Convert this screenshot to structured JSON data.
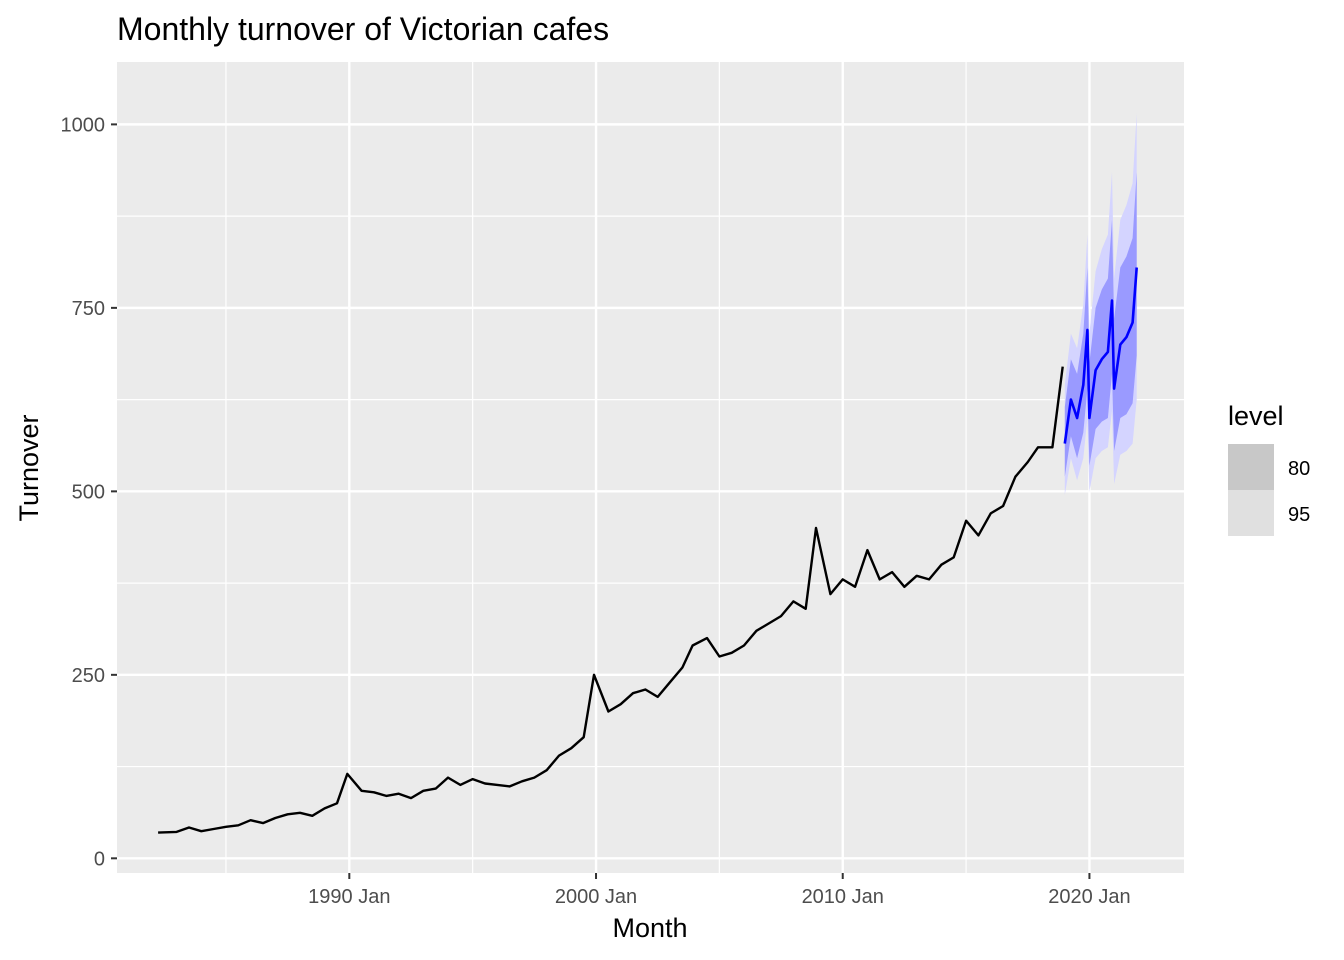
{
  "chart_data": {
    "type": "line",
    "title": "Monthly turnover of Victorian cafes",
    "xlabel": "Month",
    "ylabel": "Turnover",
    "x_ticks": [
      "1990 Jan",
      "2000 Jan",
      "2010 Jan",
      "2020 Jan"
    ],
    "y_ticks": [
      "0",
      "250",
      "500",
      "750",
      "1000"
    ],
    "ylim": [
      -20,
      1085
    ],
    "xlim": [
      "1980 Aug",
      "2023 Nov"
    ],
    "grid": true,
    "legend": {
      "title": "level",
      "placement": "right",
      "entries": [
        {
          "label": "80",
          "color": "#c8c8c8"
        },
        {
          "label": "95",
          "color": "#e0e0e0"
        }
      ]
    },
    "colors": {
      "panel": "#ebebeb",
      "grid": "#ffffff",
      "history": "#000000",
      "forecast": "#0000ff",
      "band80": "#9a9aff",
      "band95": "#d4d4ff"
    },
    "history": {
      "name": "",
      "x": [
        "1982 Apr",
        "1983 Jan",
        "1983 Jul",
        "1984 Jan",
        "1984 Jul",
        "1985 Jan",
        "1985 Jul",
        "1986 Jan",
        "1986 Jul",
        "1987 Jan",
        "1987 Jul",
        "1988 Jan",
        "1988 Jul",
        "1989 Jan",
        "1989 Jul",
        "1989 Dec",
        "1990 Jul",
        "1991 Jan",
        "1991 Jul",
        "1992 Jan",
        "1992 Jul",
        "1993 Jan",
        "1993 Jul",
        "1994 Jan",
        "1994 Jul",
        "1995 Jan",
        "1995 Jul",
        "1996 Jan",
        "1996 Jul",
        "1997 Jan",
        "1997 Jul",
        "1998 Jan",
        "1998 Jul",
        "1999 Jan",
        "1999 Jul",
        "1999 Dec",
        "2000 Jul",
        "2001 Jan",
        "2001 Jul",
        "2002 Jan",
        "2002 Jul",
        "2003 Jan",
        "2003 Jul",
        "2003 Dec",
        "2004 Jul",
        "2005 Jan",
        "2005 Jul",
        "2006 Jan",
        "2006 Jul",
        "2007 Jan",
        "2007 Jul",
        "2008 Jan",
        "2008 Jul",
        "2008 Dec",
        "2009 Jul",
        "2010 Jan",
        "2010 Jul",
        "2011 Jan",
        "2011 Jul",
        "2012 Jan",
        "2012 Jul",
        "2013 Jan",
        "2013 Jul",
        "2014 Jan",
        "2014 Jul",
        "2015 Jan",
        "2015 Jul",
        "2016 Jan",
        "2016 Jul",
        "2017 Jan",
        "2017 Jul",
        "2017 Dec",
        "2018 Jul",
        "2018 Dec"
      ],
      "values": [
        35,
        36,
        42,
        37,
        40,
        43,
        45,
        52,
        48,
        55,
        60,
        62,
        58,
        68,
        75,
        115,
        92,
        90,
        85,
        88,
        82,
        92,
        95,
        110,
        100,
        108,
        102,
        100,
        98,
        105,
        110,
        120,
        140,
        150,
        165,
        250,
        200,
        210,
        225,
        230,
        220,
        240,
        260,
        290,
        300,
        275,
        280,
        290,
        310,
        320,
        330,
        350,
        340,
        450,
        360,
        380,
        370,
        420,
        380,
        390,
        370,
        385,
        380,
        400,
        410,
        460,
        440,
        470,
        480,
        520,
        540,
        560,
        560,
        670
      ]
    },
    "forecast": {
      "name": "",
      "x": [
        "2019 Jan",
        "2019 Apr",
        "2019 Jul",
        "2019 Oct",
        "2019 Dec",
        "2020 Jan",
        "2020 Apr",
        "2020 Jul",
        "2020 Oct",
        "2020 Dec",
        "2021 Jan",
        "2021 Apr",
        "2021 Jul",
        "2021 Oct",
        "2021 Dec"
      ],
      "values": [
        565,
        625,
        600,
        645,
        720,
        600,
        665,
        680,
        690,
        760,
        640,
        700,
        710,
        730,
        805
      ],
      "lo80": [
        520,
        575,
        545,
        580,
        640,
        535,
        585,
        595,
        600,
        660,
        555,
        600,
        605,
        620,
        685
      ],
      "hi80": [
        615,
        680,
        660,
        715,
        805,
        675,
        750,
        775,
        790,
        870,
        735,
        805,
        820,
        845,
        935
      ],
      "lo95": [
        495,
        545,
        515,
        545,
        600,
        500,
        545,
        555,
        560,
        610,
        510,
        550,
        555,
        565,
        625
      ],
      "hi95": [
        645,
        715,
        695,
        755,
        850,
        715,
        800,
        830,
        850,
        935,
        790,
        870,
        890,
        920,
        1015
      ]
    }
  }
}
